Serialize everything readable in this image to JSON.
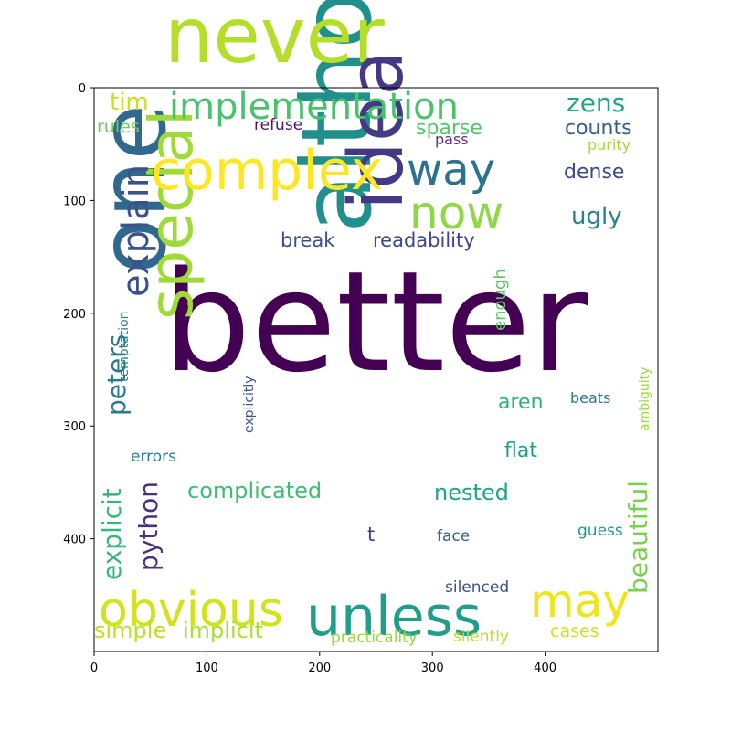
{
  "chart_data": {
    "type": "wordcloud",
    "xlim": [
      0,
      500
    ],
    "ylim": [
      500,
      0
    ],
    "x_ticks": [
      0,
      100,
      200,
      300,
      400
    ],
    "y_ticks": [
      0,
      100,
      200,
      300,
      400
    ],
    "grid": false,
    "colormap": "viridis",
    "words": [
      {
        "text": "better",
        "x": 178,
        "y": 405,
        "size": 152,
        "rot": 0,
        "color": "#440154"
      },
      {
        "text": "although",
        "x": 405,
        "y": 255,
        "size": 105,
        "rot": -90,
        "color": "#21908d"
      },
      {
        "text": "one",
        "x": 180,
        "y": 300,
        "size": 100,
        "rot": -90,
        "color": "#31688e"
      },
      {
        "text": "never",
        "x": 180,
        "y": 68,
        "size": 84,
        "rot": 0,
        "color": "#b5de2b"
      },
      {
        "text": "idea",
        "x": 440,
        "y": 230,
        "size": 82,
        "rot": -90,
        "color": "#443a83"
      },
      {
        "text": "special",
        "x": 210,
        "y": 350,
        "size": 66,
        "rot": -90,
        "color": "#a0da39"
      },
      {
        "text": "complex",
        "x": 165,
        "y": 207,
        "size": 60,
        "rot": 0,
        "color": "#fde725"
      },
      {
        "text": "unless",
        "x": 335,
        "y": 695,
        "size": 60,
        "rot": 0,
        "color": "#1f9e89"
      },
      {
        "text": "obvious",
        "x": 108,
        "y": 685,
        "size": 52,
        "rot": 0,
        "color": "#d2e21b"
      },
      {
        "text": "may",
        "x": 580,
        "y": 675,
        "size": 50,
        "rot": 0,
        "color": "#efe51c"
      },
      {
        "text": "now",
        "x": 448,
        "y": 250,
        "size": 50,
        "rot": 0,
        "color": "#8fd744"
      },
      {
        "text": "way",
        "x": 445,
        "y": 202,
        "size": 48,
        "rot": 0,
        "color": "#2c728e"
      },
      {
        "text": "implementation",
        "x": 185,
        "y": 130,
        "size": 40,
        "rot": 0,
        "color": "#4ac16d"
      },
      {
        "text": "explain",
        "x": 162,
        "y": 325,
        "size": 40,
        "rot": -90,
        "color": "#3b528b"
      },
      {
        "text": "beautiful",
        "x": 708,
        "y": 650,
        "size": 28,
        "rot": -90,
        "color": "#7ad151"
      },
      {
        "text": "explicit",
        "x": 132,
        "y": 635,
        "size": 28,
        "rot": -90,
        "color": "#35b779"
      },
      {
        "text": "peters",
        "x": 137,
        "y": 455,
        "size": 28,
        "rot": -90,
        "color": "#2a788e"
      },
      {
        "text": "python",
        "x": 172,
        "y": 625,
        "size": 28,
        "rot": -90,
        "color": "#46327e"
      },
      {
        "text": "complicated",
        "x": 205,
        "y": 545,
        "size": 24,
        "rot": 0,
        "color": "#3fbc73"
      },
      {
        "text": "nested",
        "x": 475,
        "y": 547,
        "size": 24,
        "rot": 0,
        "color": "#20a486"
      },
      {
        "text": "zens",
        "x": 620,
        "y": 122,
        "size": 28,
        "rot": 0,
        "color": "#22a785"
      },
      {
        "text": "ugly",
        "x": 625,
        "y": 245,
        "size": 26,
        "rot": 0,
        "color": "#26828e"
      },
      {
        "text": "tim",
        "x": 120,
        "y": 120,
        "size": 26,
        "rot": 0,
        "color": "#c8e020"
      },
      {
        "text": "simple",
        "x": 103,
        "y": 698,
        "size": 24,
        "rot": 0,
        "color": "#bddf26"
      },
      {
        "text": "implicit",
        "x": 200,
        "y": 698,
        "size": 24,
        "rot": 0,
        "color": "#aadc32"
      },
      {
        "text": "flat",
        "x": 552,
        "y": 500,
        "size": 22,
        "rot": 0,
        "color": "#1fa088"
      },
      {
        "text": "aren",
        "x": 545,
        "y": 447,
        "size": 22,
        "rot": 0,
        "color": "#2db27d"
      },
      {
        "text": "sparse",
        "x": 455,
        "y": 147,
        "size": 22,
        "rot": 0,
        "color": "#52c569"
      },
      {
        "text": "counts",
        "x": 618,
        "y": 147,
        "size": 22,
        "rot": 0,
        "color": "#355f8d"
      },
      {
        "text": "dense",
        "x": 617,
        "y": 195,
        "size": 22,
        "rot": 0,
        "color": "#3e4989"
      },
      {
        "text": "readability",
        "x": 408,
        "y": 270,
        "size": 21,
        "rot": 0,
        "color": "#414487"
      },
      {
        "text": "break",
        "x": 307,
        "y": 270,
        "size": 21,
        "rot": 0,
        "color": "#3e4c8a"
      },
      {
        "text": "cases",
        "x": 602,
        "y": 697,
        "size": 19,
        "rot": 0,
        "color": "#cde11d"
      },
      {
        "text": "rules",
        "x": 106,
        "y": 145,
        "size": 19,
        "rot": 0,
        "color": "#6ece58"
      },
      {
        "text": "enough",
        "x": 553,
        "y": 362,
        "size": 18,
        "rot": -90,
        "color": "#5ec962"
      },
      {
        "text": "t",
        "x": 402,
        "y": 592,
        "size": 21,
        "rot": 0,
        "color": "#424086"
      },
      {
        "text": "errors",
        "x": 143,
        "y": 505,
        "size": 17,
        "rot": 0,
        "color": "#277f8e"
      },
      {
        "text": "silenced",
        "x": 487,
        "y": 648,
        "size": 17,
        "rot": 0,
        "color": "#3b528b"
      },
      {
        "text": "silently",
        "x": 496,
        "y": 702,
        "size": 17,
        "rot": 0,
        "color": "#b8de29"
      },
      {
        "text": "practicality",
        "x": 362,
        "y": 703,
        "size": 17,
        "rot": 0,
        "color": "#95d840"
      },
      {
        "text": "guess",
        "x": 632,
        "y": 586,
        "size": 17,
        "rot": 0,
        "color": "#1f9a8a"
      },
      {
        "text": "face",
        "x": 478,
        "y": 592,
        "size": 17,
        "rot": 0,
        "color": "#34618d"
      },
      {
        "text": "beats",
        "x": 624,
        "y": 441,
        "size": 16,
        "rot": 0,
        "color": "#2c738e"
      },
      {
        "text": "refuse",
        "x": 278,
        "y": 142,
        "size": 17,
        "rot": 0,
        "color": "#48186a"
      },
      {
        "text": "pass",
        "x": 476,
        "y": 158,
        "size": 16,
        "rot": 0,
        "color": "#6a2c83"
      },
      {
        "text": "purity",
        "x": 643,
        "y": 164,
        "size": 16,
        "rot": 0,
        "color": "#a2da37"
      },
      {
        "text": "temptation",
        "x": 140,
        "y": 418,
        "size": 14,
        "rot": -90,
        "color": "#277f8e"
      },
      {
        "text": "explicitly",
        "x": 277,
        "y": 474,
        "size": 14,
        "rot": -90,
        "color": "#3b528b"
      },
      {
        "text": "ambiguity",
        "x": 710,
        "y": 472,
        "size": 14,
        "rot": -90,
        "color": "#a0da39"
      }
    ]
  }
}
